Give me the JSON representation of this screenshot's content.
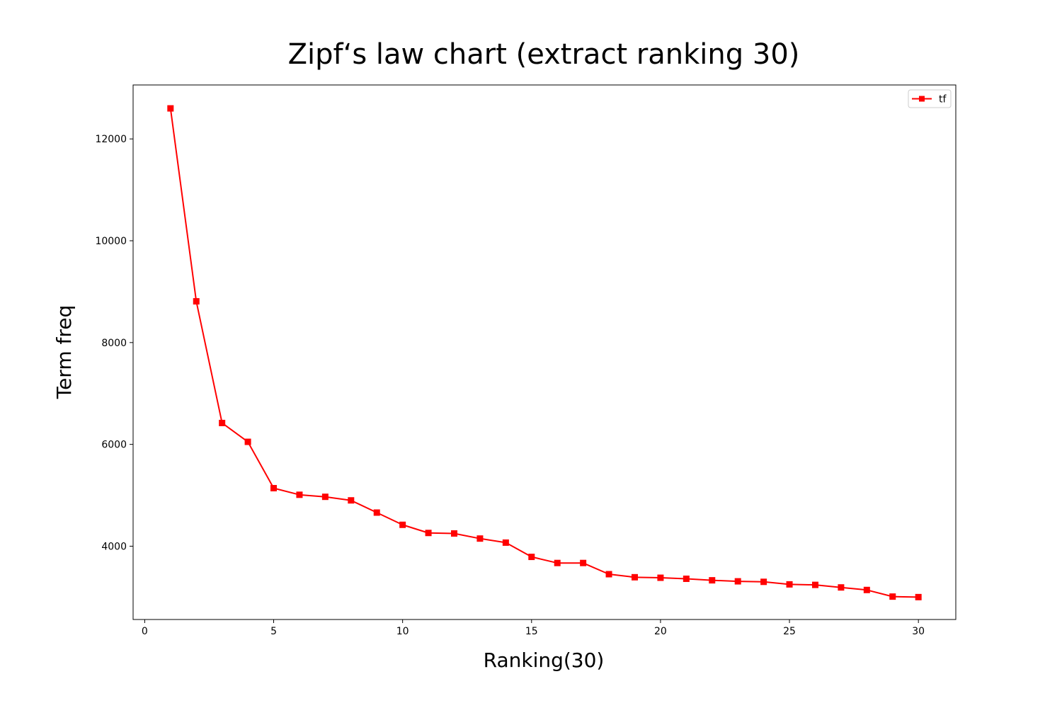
{
  "chart_data": {
    "type": "line",
    "title": "Zipf‘s law chart (extract ranking 30)",
    "xlabel": "Ranking(30)",
    "ylabel": "Term freq",
    "xlim": [
      -0.45,
      31.45
    ],
    "ylim": [
      2560,
      13060
    ],
    "xticks": [
      0,
      5,
      10,
      15,
      20,
      25,
      30
    ],
    "yticks": [
      4000,
      6000,
      8000,
      10000,
      12000
    ],
    "grid": false,
    "legend_position": "top-right",
    "series": [
      {
        "name": "tf",
        "color": "#ff0000",
        "marker": "square",
        "x": [
          1,
          2,
          3,
          4,
          5,
          6,
          7,
          8,
          9,
          10,
          11,
          12,
          13,
          14,
          15,
          16,
          17,
          18,
          19,
          20,
          21,
          22,
          23,
          24,
          25,
          26,
          27,
          28,
          29,
          30
        ],
        "y": [
          12600,
          8810,
          6420,
          6050,
          5140,
          5010,
          4970,
          4900,
          4660,
          4420,
          4260,
          4250,
          4150,
          4070,
          3790,
          3670,
          3670,
          3450,
          3390,
          3380,
          3360,
          3330,
          3310,
          3300,
          3250,
          3240,
          3190,
          3140,
          3010,
          3000
        ]
      }
    ]
  }
}
